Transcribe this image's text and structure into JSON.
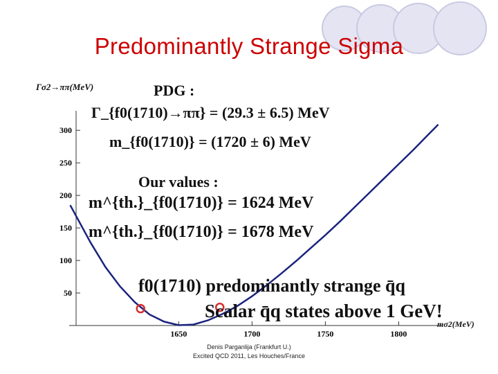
{
  "title": "Predominantly Strange Sigma",
  "footer": {
    "line1": "Denis Parganlija (Frankfurt U.)",
    "line2": "Excited QCD 2011, Les Houches/France"
  },
  "annotations": {
    "pdg_header": "PDG :",
    "pdg_width": "Γ_{f0(1710)→ππ} = (29.3 ± 6.5) MeV",
    "pdg_mass": "m_{f0(1710)} = (1720 ± 6) MeV",
    "our_header": "Our values :",
    "our_mass1": "m^{th.}_{f0(1710)} = 1624 MeV",
    "our_mass2": "m^{th.}_{f0(1710)} = 1678 MeV",
    "conclusion": "f0(1710) predominantly strange q̄q",
    "scalar": "Scalar q̄q states above 1 GeV!"
  },
  "chart_data": {
    "type": "line",
    "ylabel": "Γσ2→ππ(MeV)",
    "xlabel": "mσ2(MeV)",
    "xlim": [
      1580,
      1830
    ],
    "ylim": [
      0,
      330
    ],
    "x_ticks": [
      1650,
      1700,
      1750,
      1800
    ],
    "y_ticks": [
      50,
      100,
      150,
      200,
      250,
      300
    ],
    "series": [
      {
        "color": "#1a237e",
        "x": [
          1576,
          1590,
          1600,
          1610,
          1620,
          1630,
          1640,
          1650,
          1660,
          1670,
          1680,
          1690,
          1700,
          1710,
          1720,
          1730,
          1740,
          1750,
          1760,
          1770,
          1780,
          1790,
          1800,
          1810,
          1820,
          1827
        ],
        "y": [
          185,
          127,
          90,
          60,
          36,
          17,
          6,
          0.5,
          1.5,
          8,
          18,
          30,
          45,
          62,
          80,
          99,
          119,
          139,
          160,
          182,
          204,
          226,
          248,
          270,
          293,
          309
        ]
      }
    ],
    "markers": [
      {
        "x": 1624,
        "y": 26
      },
      {
        "x": 1678,
        "y": 28
      }
    ],
    "marker_color": "#d32f2f"
  }
}
